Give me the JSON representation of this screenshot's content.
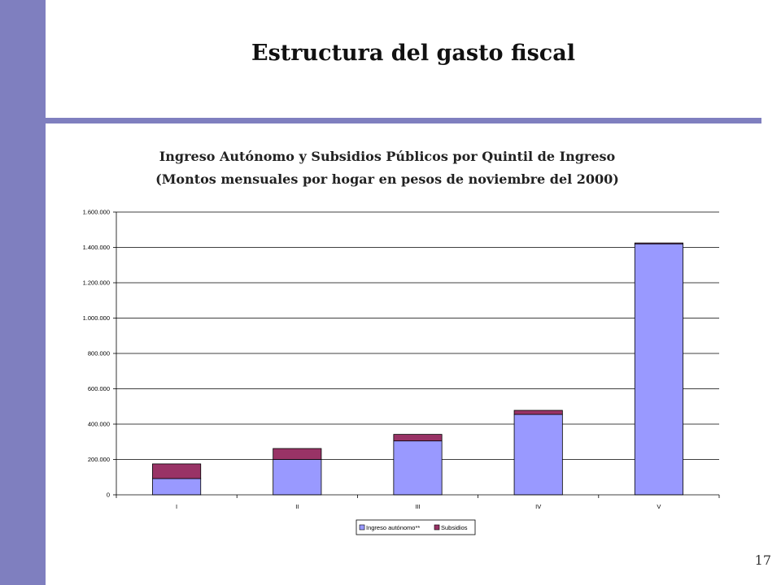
{
  "slide": {
    "title": "Estructura del gasto fiscal",
    "page_number": "17",
    "accent_color": "#7f7fbf"
  },
  "chart_data": {
    "type": "bar",
    "stacked": true,
    "title": "Ingreso Autónomo y Subsidios Públicos por Quintil de Ingreso",
    "subtitle": "(Montos mensuales por hogar en pesos de noviembre del 2000)",
    "categories": [
      "I",
      "II",
      "III",
      "IV",
      "V"
    ],
    "series": [
      {
        "name": "Ingreso autónomo**",
        "color": "#9999ff",
        "values": [
          92000,
          200000,
          305000,
          455000,
          1420000
        ]
      },
      {
        "name": "Subsidios",
        "color": "#993366",
        "values": [
          83000,
          62000,
          37000,
          23000,
          5000
        ]
      }
    ],
    "ylim": [
      0,
      1600000
    ],
    "yticks": [
      0,
      200000,
      400000,
      600000,
      800000,
      1000000,
      1200000,
      1400000,
      1600000
    ],
    "ytick_labels": [
      "0",
      "200.000",
      "400.000",
      "600.000",
      "800.000",
      "1.000.000",
      "1.200.000",
      "1.400.000",
      "1.600.000"
    ],
    "grid": true,
    "legend_position": "bottom"
  }
}
